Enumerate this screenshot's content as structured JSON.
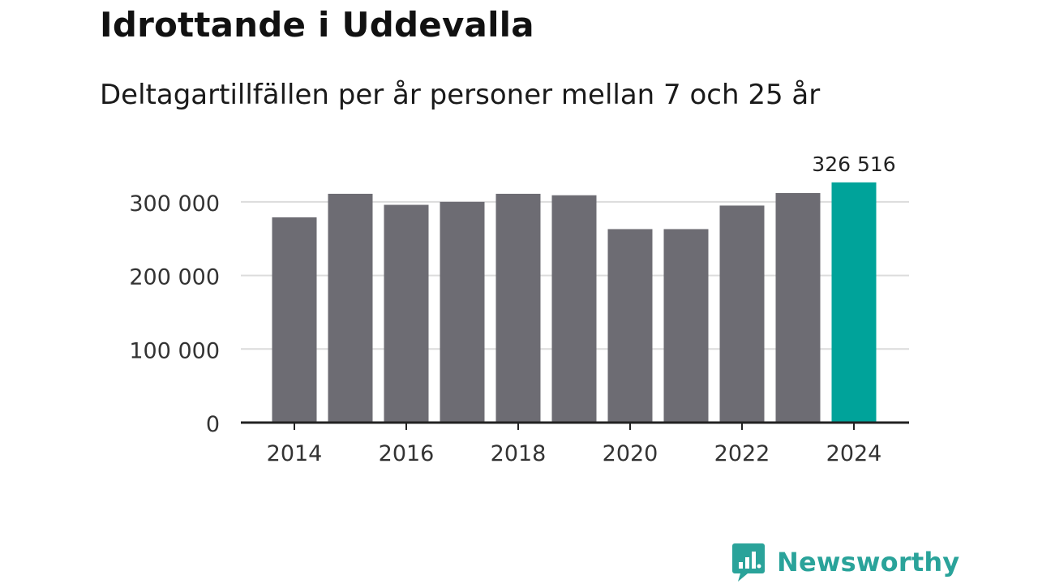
{
  "header": {
    "title": "Idrottande i Uddevalla",
    "subtitle": "Deltagartillfällen per år personer mellan 7 och 25 år"
  },
  "brand": {
    "name": "Newsworthy",
    "color": "#2aa39a"
  },
  "colors": {
    "bar": "#6d6c73",
    "highlight": "#00a39a",
    "grid": "#dcdcdc",
    "axis": "#222222"
  },
  "chart_data": {
    "type": "bar",
    "title": "Idrottande i Uddevalla",
    "subtitle": "Deltagartillfällen per år personer mellan 7 och 25 år",
    "xlabel": "",
    "ylabel": "",
    "categories": [
      "2014",
      "2015",
      "2016",
      "2017",
      "2018",
      "2019",
      "2020",
      "2021",
      "2022",
      "2023",
      "2024"
    ],
    "values": [
      279000,
      311000,
      296000,
      300000,
      311000,
      309000,
      263000,
      263000,
      295000,
      312000,
      326516
    ],
    "highlight_index": 10,
    "data_labels": [
      {
        "index": 10,
        "text": "326 516"
      }
    ],
    "ylim": [
      0,
      345000
    ],
    "yticks": [
      0,
      100000,
      200000,
      300000
    ],
    "ytick_labels": [
      "0",
      "100 000",
      "200 000",
      "300 000"
    ],
    "xtick_labels": [
      "2014",
      "2016",
      "2018",
      "2020",
      "2022",
      "2024"
    ],
    "grid": true,
    "legend": "none"
  }
}
